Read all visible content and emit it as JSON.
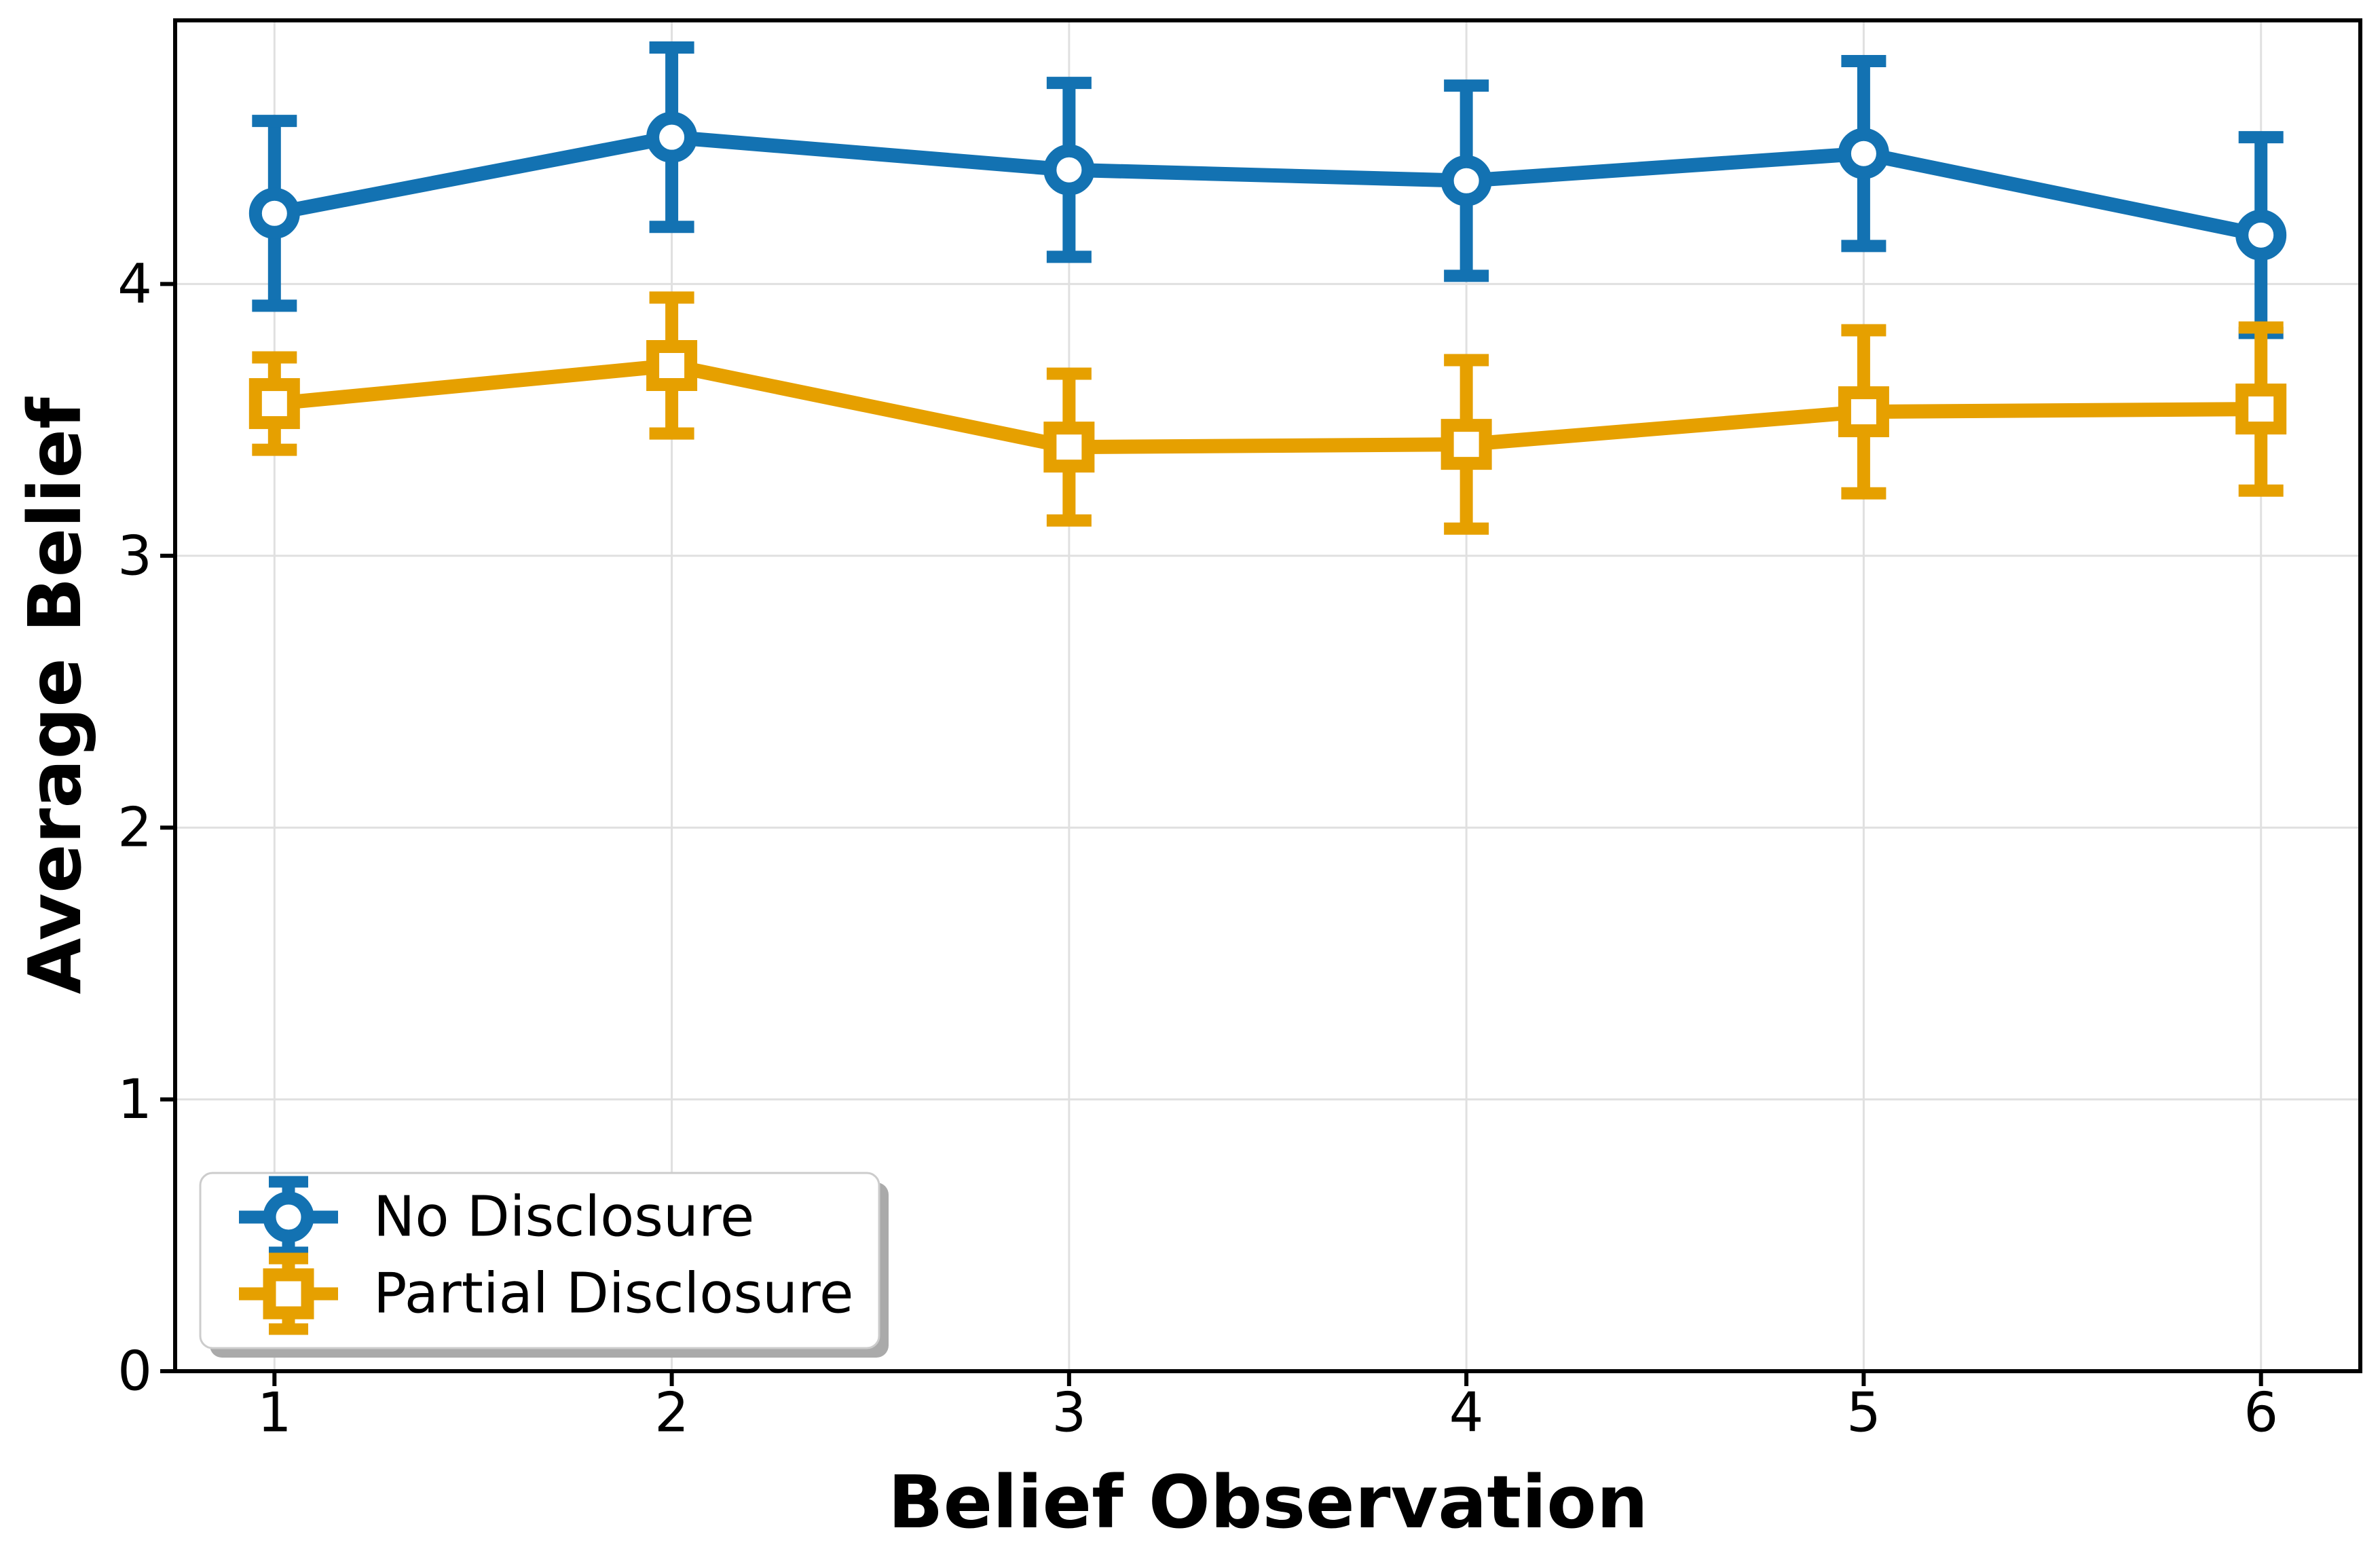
{
  "chart_data": {
    "type": "line",
    "x": [
      1,
      2,
      3,
      4,
      5,
      6
    ],
    "series": [
      {
        "name": "No Disclosure",
        "marker": "circle",
        "color": "#1372B2",
        "values": [
          4.26,
          4.54,
          4.42,
          4.38,
          4.48,
          4.18
        ],
        "errors": [
          0.34,
          0.33,
          0.32,
          0.35,
          0.34,
          0.36
        ]
      },
      {
        "name": "Partial Disclosure",
        "marker": "square",
        "color": "#E6A000",
        "values": [
          3.56,
          3.7,
          3.4,
          3.41,
          3.53,
          3.54
        ],
        "errors": [
          0.17,
          0.25,
          0.27,
          0.31,
          0.3,
          0.3
        ]
      }
    ],
    "title": "",
    "xlabel": "Belief Observation",
    "ylabel": "Average Belief",
    "xlim": [
      0.75,
      6.25
    ],
    "ylim": [
      0,
      4.97
    ],
    "xticks": {
      "values": [
        1,
        2,
        3,
        4,
        5,
        6
      ],
      "labels": [
        "1",
        "2",
        "3",
        "4",
        "5",
        "6"
      ]
    },
    "yticks": {
      "values": [
        0,
        1,
        2,
        3,
        4
      ],
      "labels": [
        "0",
        "1",
        "2",
        "3",
        "4"
      ]
    },
    "grid": true,
    "legend_position": "lower left"
  },
  "colors": {
    "background": "#ffffff",
    "spine": "#000000",
    "grid": "#e0e0e0",
    "legend_border": "#cccccc",
    "legend_fill": "#ffffff",
    "legend_shadow": "#aaaaaa"
  }
}
